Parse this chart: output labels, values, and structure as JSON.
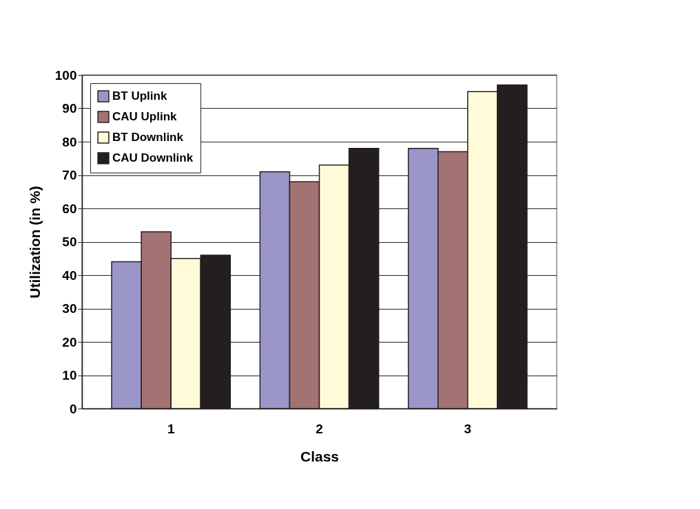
{
  "chart_data": {
    "type": "bar",
    "xlabel": "Class",
    "ylabel": "Utilization (in %)",
    "categories": [
      "1",
      "2",
      "3"
    ],
    "series": [
      {
        "name": "BT Uplink",
        "color": "#9b96c8",
        "values": [
          44,
          71,
          78
        ]
      },
      {
        "name": "CAU Uplink",
        "color": "#a37374",
        "values": [
          53,
          68,
          77
        ]
      },
      {
        "name": "BT Downlink",
        "color": "#fffad8",
        "values": [
          45,
          73,
          95
        ]
      },
      {
        "name": "CAU Downlink",
        "color": "#231f20",
        "values": [
          46,
          78,
          97
        ]
      }
    ],
    "ylim": [
      0,
      100
    ],
    "yticks": [
      0,
      10,
      20,
      30,
      40,
      50,
      60,
      70,
      80,
      90,
      100
    ],
    "grid": "y",
    "legend": "top left"
  }
}
